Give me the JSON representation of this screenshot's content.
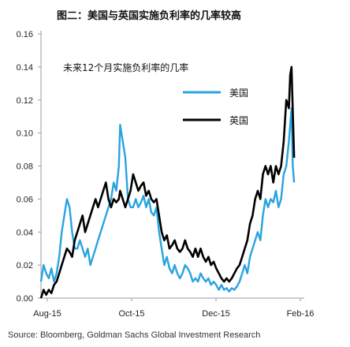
{
  "chart_data": {
    "type": "line",
    "title": "图二：美国与英国实施负利率的几率较高",
    "annotation": "未来12个月实施负利率的几率",
    "source": "Source: Bloomberg, Goldman Sachs Global Investment Research",
    "x_tick_labels": [
      "Aug-15",
      "Oct-15",
      "Dec-15",
      "Feb-16"
    ],
    "x_range": [
      "2015-08-01",
      "2016-02-15"
    ],
    "ylim": [
      0,
      0.16
    ],
    "y_ticks": [
      0.0,
      0.02,
      0.04,
      0.06,
      0.08,
      0.1,
      0.12,
      0.14,
      0.16
    ],
    "y_tick_labels": [
      "0.00",
      "0.02",
      "0.04",
      "0.06",
      "0.08",
      "0.10",
      "0.12",
      "0.14",
      "0.16"
    ],
    "legend_position": "top-right",
    "grid": false,
    "series": [
      {
        "name": "美国",
        "color": "#29a3e0",
        "points": [
          [
            "2015-08-01",
            0.01
          ],
          [
            "2015-08-03",
            0.02
          ],
          [
            "2015-08-05",
            0.015
          ],
          [
            "2015-08-07",
            0.012
          ],
          [
            "2015-08-09",
            0.018
          ],
          [
            "2015-08-11",
            0.01
          ],
          [
            "2015-08-13",
            0.015
          ],
          [
            "2015-08-15",
            0.025
          ],
          [
            "2015-08-17",
            0.04
          ],
          [
            "2015-08-19",
            0.05
          ],
          [
            "2015-08-21",
            0.06
          ],
          [
            "2015-08-23",
            0.055
          ],
          [
            "2015-08-25",
            0.04
          ],
          [
            "2015-08-27",
            0.03
          ],
          [
            "2015-08-29",
            0.03
          ],
          [
            "2015-08-31",
            0.035
          ],
          [
            "2015-09-02",
            0.03
          ],
          [
            "2015-09-04",
            0.025
          ],
          [
            "2015-09-06",
            0.03
          ],
          [
            "2015-09-08",
            0.02
          ],
          [
            "2015-09-10",
            0.025
          ],
          [
            "2015-09-12",
            0.03
          ],
          [
            "2015-09-14",
            0.035
          ],
          [
            "2015-09-16",
            0.04
          ],
          [
            "2015-09-18",
            0.045
          ],
          [
            "2015-09-20",
            0.05
          ],
          [
            "2015-09-22",
            0.055
          ],
          [
            "2015-09-24",
            0.06
          ],
          [
            "2015-09-26",
            0.07
          ],
          [
            "2015-09-28",
            0.065
          ],
          [
            "2015-09-30",
            0.08
          ],
          [
            "2015-10-01",
            0.105
          ],
          [
            "2015-10-03",
            0.095
          ],
          [
            "2015-10-05",
            0.085
          ],
          [
            "2015-10-07",
            0.06
          ],
          [
            "2015-10-09",
            0.055
          ],
          [
            "2015-10-11",
            0.055
          ],
          [
            "2015-10-13",
            0.06
          ],
          [
            "2015-10-15",
            0.055
          ],
          [
            "2015-10-17",
            0.058
          ],
          [
            "2015-10-19",
            0.062
          ],
          [
            "2015-10-21",
            0.055
          ],
          [
            "2015-10-23",
            0.06
          ],
          [
            "2015-10-25",
            0.052
          ],
          [
            "2015-10-27",
            0.05
          ],
          [
            "2015-10-29",
            0.055
          ],
          [
            "2015-10-31",
            0.04
          ],
          [
            "2015-11-02",
            0.03
          ],
          [
            "2015-11-04",
            0.02
          ],
          [
            "2015-11-06",
            0.025
          ],
          [
            "2015-11-08",
            0.018
          ],
          [
            "2015-11-10",
            0.015
          ],
          [
            "2015-11-12",
            0.02
          ],
          [
            "2015-11-14",
            0.015
          ],
          [
            "2015-11-16",
            0.012
          ],
          [
            "2015-11-18",
            0.015
          ],
          [
            "2015-11-20",
            0.02
          ],
          [
            "2015-11-22",
            0.018
          ],
          [
            "2015-11-24",
            0.015
          ],
          [
            "2015-11-26",
            0.01
          ],
          [
            "2015-11-28",
            0.012
          ],
          [
            "2015-11-30",
            0.01
          ],
          [
            "2015-12-02",
            0.015
          ],
          [
            "2015-12-04",
            0.012
          ],
          [
            "2015-12-06",
            0.01
          ],
          [
            "2015-12-08",
            0.012
          ],
          [
            "2015-12-10",
            0.008
          ],
          [
            "2015-12-12",
            0.01
          ],
          [
            "2015-12-14",
            0.008
          ],
          [
            "2015-12-16",
            0.005
          ],
          [
            "2015-12-18",
            0.008
          ],
          [
            "2015-12-20",
            0.005
          ],
          [
            "2015-12-22",
            0.006
          ],
          [
            "2015-12-24",
            0.004
          ],
          [
            "2015-12-26",
            0.006
          ],
          [
            "2015-12-28",
            0.005
          ],
          [
            "2015-12-30",
            0.007
          ],
          [
            "2016-01-01",
            0.01
          ],
          [
            "2016-01-03",
            0.015
          ],
          [
            "2016-01-05",
            0.02
          ],
          [
            "2016-01-07",
            0.015
          ],
          [
            "2016-01-09",
            0.025
          ],
          [
            "2016-01-11",
            0.03
          ],
          [
            "2016-01-13",
            0.035
          ],
          [
            "2016-01-15",
            0.04
          ],
          [
            "2016-01-17",
            0.035
          ],
          [
            "2016-01-19",
            0.05
          ],
          [
            "2016-01-21",
            0.06
          ],
          [
            "2016-01-23",
            0.055
          ],
          [
            "2016-01-25",
            0.06
          ],
          [
            "2016-01-27",
            0.058
          ],
          [
            "2016-01-29",
            0.065
          ],
          [
            "2016-01-31",
            0.055
          ],
          [
            "2016-02-02",
            0.06
          ],
          [
            "2016-02-04",
            0.075
          ],
          [
            "2016-02-06",
            0.08
          ],
          [
            "2016-02-08",
            0.095
          ],
          [
            "2016-02-10",
            0.115
          ],
          [
            "2016-02-11",
            0.08
          ],
          [
            "2016-02-12",
            0.07
          ]
        ]
      },
      {
        "name": "英国",
        "color": "#000000",
        "points": [
          [
            "2015-08-01",
            0.0
          ],
          [
            "2015-08-03",
            0.005
          ],
          [
            "2015-08-05",
            0.002
          ],
          [
            "2015-08-07",
            0.005
          ],
          [
            "2015-08-09",
            0.003
          ],
          [
            "2015-08-11",
            0.008
          ],
          [
            "2015-08-13",
            0.01
          ],
          [
            "2015-08-15",
            0.015
          ],
          [
            "2015-08-17",
            0.02
          ],
          [
            "2015-08-19",
            0.025
          ],
          [
            "2015-08-21",
            0.03
          ],
          [
            "2015-08-23",
            0.028
          ],
          [
            "2015-08-25",
            0.025
          ],
          [
            "2015-08-27",
            0.035
          ],
          [
            "2015-08-29",
            0.04
          ],
          [
            "2015-08-31",
            0.045
          ],
          [
            "2015-09-02",
            0.05
          ],
          [
            "2015-09-04",
            0.04
          ],
          [
            "2015-09-06",
            0.045
          ],
          [
            "2015-09-08",
            0.05
          ],
          [
            "2015-09-10",
            0.055
          ],
          [
            "2015-09-12",
            0.06
          ],
          [
            "2015-09-14",
            0.055
          ],
          [
            "2015-09-16",
            0.06
          ],
          [
            "2015-09-18",
            0.065
          ],
          [
            "2015-09-20",
            0.07
          ],
          [
            "2015-09-22",
            0.06
          ],
          [
            "2015-09-24",
            0.055
          ],
          [
            "2015-09-26",
            0.06
          ],
          [
            "2015-09-28",
            0.058
          ],
          [
            "2015-09-30",
            0.06
          ],
          [
            "2015-10-01",
            0.065
          ],
          [
            "2015-10-03",
            0.06
          ],
          [
            "2015-10-05",
            0.055
          ],
          [
            "2015-10-07",
            0.06
          ],
          [
            "2015-10-09",
            0.065
          ],
          [
            "2015-10-11",
            0.075
          ],
          [
            "2015-10-13",
            0.07
          ],
          [
            "2015-10-15",
            0.065
          ],
          [
            "2015-10-17",
            0.068
          ],
          [
            "2015-10-19",
            0.07
          ],
          [
            "2015-10-21",
            0.062
          ],
          [
            "2015-10-23",
            0.065
          ],
          [
            "2015-10-25",
            0.06
          ],
          [
            "2015-10-27",
            0.058
          ],
          [
            "2015-10-29",
            0.06
          ],
          [
            "2015-10-31",
            0.05
          ],
          [
            "2015-11-02",
            0.04
          ],
          [
            "2015-11-04",
            0.035
          ],
          [
            "2015-11-06",
            0.038
          ],
          [
            "2015-11-08",
            0.03
          ],
          [
            "2015-11-10",
            0.032
          ],
          [
            "2015-11-12",
            0.035
          ],
          [
            "2015-11-14",
            0.03
          ],
          [
            "2015-11-16",
            0.028
          ],
          [
            "2015-11-18",
            0.03
          ],
          [
            "2015-11-20",
            0.035
          ],
          [
            "2015-11-22",
            0.03
          ],
          [
            "2015-11-24",
            0.028
          ],
          [
            "2015-11-26",
            0.025
          ],
          [
            "2015-11-28",
            0.03
          ],
          [
            "2015-11-30",
            0.025
          ],
          [
            "2015-12-02",
            0.03
          ],
          [
            "2015-12-04",
            0.025
          ],
          [
            "2015-12-06",
            0.022
          ],
          [
            "2015-12-08",
            0.025
          ],
          [
            "2015-12-10",
            0.02
          ],
          [
            "2015-12-12",
            0.022
          ],
          [
            "2015-12-14",
            0.018
          ],
          [
            "2015-12-16",
            0.015
          ],
          [
            "2015-12-18",
            0.012
          ],
          [
            "2015-12-20",
            0.01
          ],
          [
            "2015-12-22",
            0.012
          ],
          [
            "2015-12-24",
            0.01
          ],
          [
            "2015-12-26",
            0.012
          ],
          [
            "2015-12-28",
            0.015
          ],
          [
            "2015-12-30",
            0.018
          ],
          [
            "2016-01-01",
            0.02
          ],
          [
            "2016-01-03",
            0.025
          ],
          [
            "2016-01-05",
            0.03
          ],
          [
            "2016-01-07",
            0.035
          ],
          [
            "2016-01-09",
            0.045
          ],
          [
            "2016-01-11",
            0.05
          ],
          [
            "2016-01-13",
            0.06
          ],
          [
            "2016-01-15",
            0.065
          ],
          [
            "2016-01-17",
            0.06
          ],
          [
            "2016-01-19",
            0.075
          ],
          [
            "2016-01-21",
            0.08
          ],
          [
            "2016-01-23",
            0.075
          ],
          [
            "2016-01-25",
            0.08
          ],
          [
            "2016-01-27",
            0.07
          ],
          [
            "2016-01-29",
            0.08
          ],
          [
            "2016-01-31",
            0.075
          ],
          [
            "2016-02-02",
            0.08
          ],
          [
            "2016-02-04",
            0.095
          ],
          [
            "2016-02-06",
            0.12
          ],
          [
            "2016-02-08",
            0.115
          ],
          [
            "2016-02-09",
            0.135
          ],
          [
            "2016-02-10",
            0.14
          ],
          [
            "2016-02-12",
            0.085
          ]
        ]
      }
    ]
  }
}
